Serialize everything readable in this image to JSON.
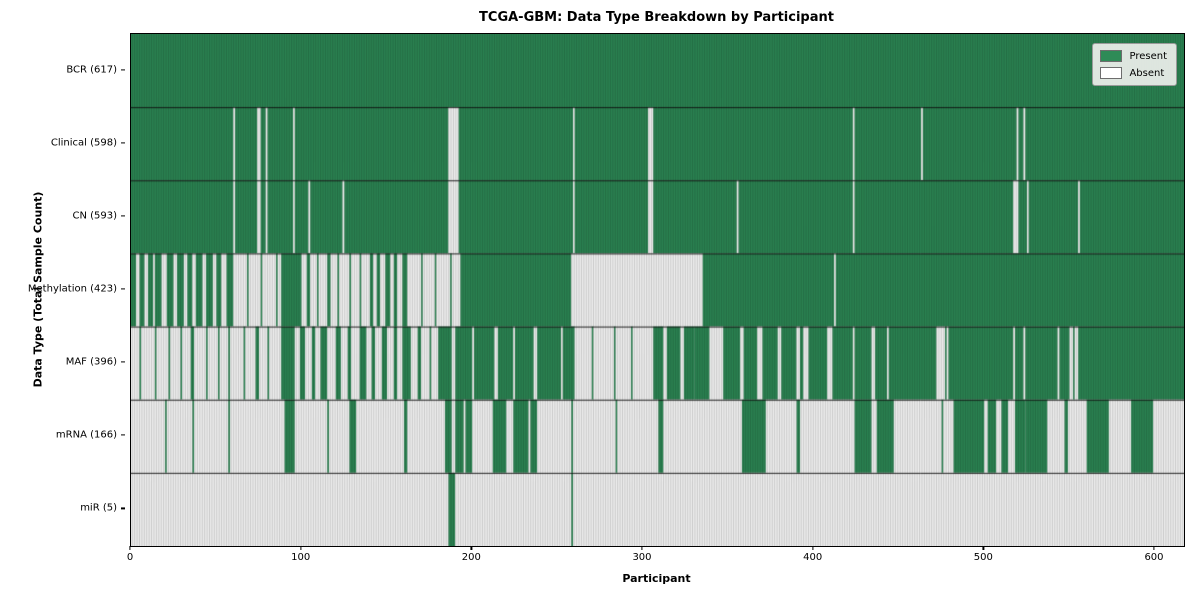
{
  "title": "TCGA-GBM: Data Type Breakdown by Participant",
  "xlabel": "Participant",
  "ylabel": "Data Type (Total Sample Count)",
  "legend": {
    "present_label": "Present",
    "absent_label": "Absent"
  },
  "colors": {
    "present": "#2e8b57",
    "absent": "#ffffff",
    "bar_edge": "rgba(0,0,0,0.32)",
    "row_divider": "rgba(10,10,10,0.9)",
    "plot_border": "#000000"
  },
  "chart_data": {
    "type": "heatmap",
    "subtype": "presence-absence-matrix",
    "n_participants": 617,
    "xlim": [
      0,
      617
    ],
    "x_ticks": [
      0,
      100,
      200,
      300,
      400,
      500,
      600
    ],
    "legend_position": "upper right",
    "grid": false,
    "runs_format": "run-length encoded left-to-right per row: [n_participants, 1=Present|0=Absent]",
    "rows": [
      {
        "name": "BCR",
        "label": "BCR (617)",
        "present_count": 617,
        "runs": [
          [
            617,
            1
          ]
        ]
      },
      {
        "name": "Clinical",
        "label": "Clinical (598)",
        "present_count": 598,
        "runs": [
          [
            60,
            1
          ],
          [
            1,
            0
          ],
          [
            13,
            1
          ],
          [
            2,
            0
          ],
          [
            3,
            1
          ],
          [
            1,
            0
          ],
          [
            15,
            1
          ],
          [
            1,
            0
          ],
          [
            90,
            1
          ],
          [
            6,
            0
          ],
          [
            67,
            1
          ],
          [
            1,
            0
          ],
          [
            43,
            1
          ],
          [
            3,
            0
          ],
          [
            117,
            1
          ],
          [
            1,
            0
          ],
          [
            39,
            1
          ],
          [
            1,
            0
          ],
          [
            55,
            1
          ],
          [
            1,
            0
          ],
          [
            3,
            1
          ],
          [
            1,
            0
          ],
          [
            93,
            1
          ]
        ]
      },
      {
        "name": "CN",
        "label": "CN (593)",
        "present_count": 593,
        "runs": [
          [
            60,
            1
          ],
          [
            1,
            0
          ],
          [
            13,
            1
          ],
          [
            2,
            0
          ],
          [
            3,
            1
          ],
          [
            1,
            0
          ],
          [
            15,
            1
          ],
          [
            1,
            0
          ],
          [
            8,
            1
          ],
          [
            1,
            0
          ],
          [
            19,
            1
          ],
          [
            1,
            0
          ],
          [
            61,
            1
          ],
          [
            6,
            0
          ],
          [
            67,
            1
          ],
          [
            1,
            0
          ],
          [
            43,
            1
          ],
          [
            3,
            0
          ],
          [
            49,
            1
          ],
          [
            1,
            0
          ],
          [
            67,
            1
          ],
          [
            1,
            0
          ],
          [
            93,
            1
          ],
          [
            3,
            0
          ],
          [
            5,
            1
          ],
          [
            1,
            0
          ],
          [
            29,
            1
          ],
          [
            1,
            0
          ],
          [
            61,
            1
          ]
        ]
      },
      {
        "name": "Methylation",
        "label": "Methylation (423)",
        "present_count": 423,
        "runs": [
          [
            3,
            1
          ],
          [
            2,
            0
          ],
          [
            3,
            1
          ],
          [
            2,
            0
          ],
          [
            3,
            1
          ],
          [
            1,
            0
          ],
          [
            4,
            1
          ],
          [
            3,
            0
          ],
          [
            4,
            1
          ],
          [
            2,
            0
          ],
          [
            4,
            1
          ],
          [
            2,
            0
          ],
          [
            3,
            1
          ],
          [
            2,
            0
          ],
          [
            4,
            1
          ],
          [
            2,
            0
          ],
          [
            4,
            1
          ],
          [
            2,
            0
          ],
          [
            3,
            1
          ],
          [
            3,
            0
          ],
          [
            4,
            1
          ],
          [
            2,
            0
          ],
          [
            6,
            0
          ],
          [
            1,
            1
          ],
          [
            7,
            0
          ],
          [
            1,
            1
          ],
          [
            8,
            0
          ],
          [
            1,
            1
          ],
          [
            2,
            0
          ],
          [
            12,
            1
          ],
          [
            3,
            0
          ],
          [
            2,
            1
          ],
          [
            4,
            0
          ],
          [
            1,
            1
          ],
          [
            5,
            0
          ],
          [
            2,
            1
          ],
          [
            4,
            0
          ],
          [
            1,
            1
          ],
          [
            6,
            0
          ],
          [
            1,
            1
          ],
          [
            5,
            0
          ],
          [
            1,
            1
          ],
          [
            5,
            0
          ],
          [
            2,
            1
          ],
          [
            2,
            0
          ],
          [
            2,
            1
          ],
          [
            3,
            0
          ],
          [
            3,
            1
          ],
          [
            2,
            0
          ],
          [
            2,
            1
          ],
          [
            3,
            0
          ],
          [
            3,
            1
          ],
          [
            3,
            0
          ],
          [
            5,
            0
          ],
          [
            1,
            1
          ],
          [
            7,
            0
          ],
          [
            1,
            1
          ],
          [
            8,
            0
          ],
          [
            1,
            1
          ],
          [
            5,
            0
          ],
          [
            65,
            1
          ],
          [
            77,
            0
          ],
          [
            77,
            1
          ],
          [
            1,
            0
          ],
          [
            204,
            1
          ]
        ]
      },
      {
        "name": "MAF",
        "label": "MAF (396)",
        "present_count": 396,
        "runs": [
          [
            5,
            0
          ],
          [
            1,
            1
          ],
          [
            8,
            0
          ],
          [
            1,
            1
          ],
          [
            4,
            0
          ],
          [
            3,
            0
          ],
          [
            1,
            1
          ],
          [
            6,
            0
          ],
          [
            1,
            1
          ],
          [
            5,
            0
          ],
          [
            2,
            1
          ],
          [
            7,
            0
          ],
          [
            1,
            1
          ],
          [
            6,
            0
          ],
          [
            1,
            1
          ],
          [
            5,
            0
          ],
          [
            1,
            1
          ],
          [
            8,
            0
          ],
          [
            1,
            1
          ],
          [
            6,
            0
          ],
          [
            2,
            1
          ],
          [
            5,
            0
          ],
          [
            1,
            1
          ],
          [
            7,
            0
          ],
          [
            8,
            1
          ],
          [
            3,
            0
          ],
          [
            3,
            1
          ],
          [
            4,
            0
          ],
          [
            2,
            1
          ],
          [
            3,
            0
          ],
          [
            4,
            1
          ],
          [
            5,
            0
          ],
          [
            3,
            1
          ],
          [
            4,
            0
          ],
          [
            2,
            1
          ],
          [
            5,
            0
          ],
          [
            4,
            1
          ],
          [
            3,
            0
          ],
          [
            2,
            1
          ],
          [
            4,
            0
          ],
          [
            3,
            1
          ],
          [
            4,
            0
          ],
          [
            2,
            1
          ],
          [
            3,
            0
          ],
          [
            5,
            1
          ],
          [
            4,
            0
          ],
          [
            2,
            1
          ],
          [
            5,
            0
          ],
          [
            1,
            1
          ],
          [
            4,
            0
          ],
          [
            8,
            1
          ],
          [
            2,
            0
          ],
          [
            10,
            1
          ],
          [
            1,
            0
          ],
          [
            12,
            1
          ],
          [
            2,
            0
          ],
          [
            9,
            1
          ],
          [
            1,
            0
          ],
          [
            11,
            1
          ],
          [
            2,
            0
          ],
          [
            14,
            1
          ],
          [
            1,
            0
          ],
          [
            7,
            1
          ],
          [
            10,
            0
          ],
          [
            1,
            1
          ],
          [
            12,
            0
          ],
          [
            1,
            1
          ],
          [
            9,
            0
          ],
          [
            1,
            1
          ],
          [
            12,
            0
          ],
          [
            6,
            1
          ],
          [
            2,
            0
          ],
          [
            8,
            1
          ],
          [
            2,
            0
          ],
          [
            6,
            1
          ],
          [
            9,
            1
          ],
          [
            8,
            0
          ],
          [
            10,
            1
          ],
          [
            2,
            0
          ],
          [
            8,
            1
          ],
          [
            3,
            0
          ],
          [
            9,
            1
          ],
          [
            2,
            0
          ],
          [
            9,
            1
          ],
          [
            2,
            0
          ],
          [
            2,
            1
          ],
          [
            3,
            0
          ],
          [
            11,
            1
          ],
          [
            3,
            0
          ],
          [
            12,
            1
          ],
          [
            1,
            0
          ],
          [
            10,
            1
          ],
          [
            2,
            0
          ],
          [
            7,
            1
          ],
          [
            1,
            0
          ],
          [
            28,
            1
          ],
          [
            3,
            0
          ],
          [
            2,
            0
          ],
          [
            1,
            1
          ],
          [
            1,
            0
          ],
          [
            38,
            1
          ],
          [
            1,
            0
          ],
          [
            5,
            1
          ],
          [
            1,
            0
          ],
          [
            19,
            1
          ],
          [
            1,
            0
          ],
          [
            6,
            1
          ],
          [
            2,
            0
          ],
          [
            1,
            1
          ],
          [
            2,
            0
          ],
          [
            62,
            1
          ]
        ]
      },
      {
        "name": "mRNA",
        "label": "mRNA (166)",
        "present_count": 166,
        "runs": [
          [
            20,
            0
          ],
          [
            1,
            1
          ],
          [
            15,
            0
          ],
          [
            1,
            1
          ],
          [
            20,
            0
          ],
          [
            1,
            1
          ],
          [
            32,
            0
          ],
          [
            6,
            1
          ],
          [
            19,
            0
          ],
          [
            1,
            1
          ],
          [
            12,
            0
          ],
          [
            4,
            1
          ],
          [
            28,
            0
          ],
          [
            2,
            1
          ],
          [
            22,
            0
          ],
          [
            4,
            1
          ],
          [
            2,
            0
          ],
          [
            5,
            1
          ],
          [
            1,
            0
          ],
          [
            4,
            1
          ],
          [
            12,
            0
          ],
          [
            8,
            1
          ],
          [
            4,
            0
          ],
          [
            9,
            1
          ],
          [
            1,
            0
          ],
          [
            4,
            1
          ],
          [
            20,
            0
          ],
          [
            1,
            1
          ],
          [
            25,
            0
          ],
          [
            1,
            1
          ],
          [
            24,
            0
          ],
          [
            3,
            1
          ],
          [
            46,
            0
          ],
          [
            14,
            1
          ],
          [
            18,
            0
          ],
          [
            2,
            1
          ],
          [
            32,
            0
          ],
          [
            10,
            1
          ],
          [
            3,
            0
          ],
          [
            10,
            1
          ],
          [
            11,
            0
          ],
          [
            17,
            0
          ],
          [
            1,
            1
          ],
          [
            6,
            0
          ],
          [
            18,
            1
          ],
          [
            2,
            0
          ],
          [
            5,
            1
          ],
          [
            3,
            0
          ],
          [
            4,
            1
          ],
          [
            4,
            0
          ],
          [
            6,
            1
          ],
          [
            13,
            1
          ],
          [
            10,
            0
          ],
          [
            2,
            1
          ],
          [
            11,
            0
          ],
          [
            13,
            1
          ],
          [
            13,
            0
          ],
          [
            13,
            1
          ],
          [
            18,
            0
          ]
        ]
      },
      {
        "name": "miR",
        "label": "miR (5)",
        "present_count": 5,
        "runs": [
          [
            186,
            0
          ],
          [
            4,
            1
          ],
          [
            68,
            0
          ],
          [
            1,
            1
          ],
          [
            358,
            0
          ]
        ]
      }
    ]
  }
}
